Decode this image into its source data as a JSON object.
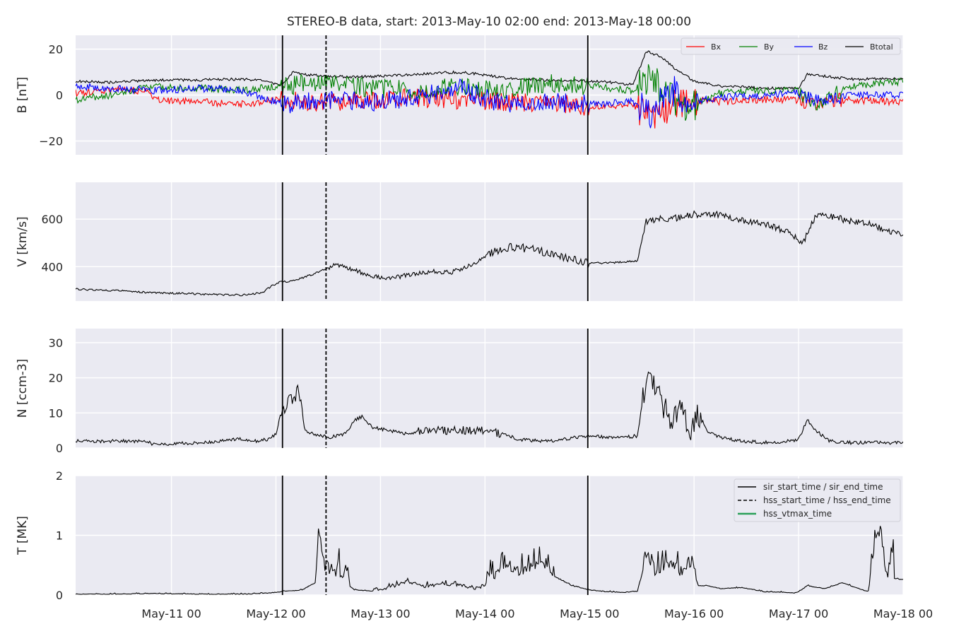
{
  "chart_data": {
    "type": "line",
    "title": "STEREO-B data, start: 2013-May-10 02:00  end: 2013-May-18 00:00",
    "x_range_hours": [
      2,
      192
    ],
    "x_ticks": [
      {
        "h": 24,
        "label": "May-11 00"
      },
      {
        "h": 48,
        "label": "May-12 00"
      },
      {
        "h": 72,
        "label": "May-13 00"
      },
      {
        "h": 96,
        "label": "May-14 00"
      },
      {
        "h": 120,
        "label": "May-15 00"
      },
      {
        "h": 144,
        "label": "May-16 00"
      },
      {
        "h": 168,
        "label": "May-17 00"
      },
      {
        "h": 192,
        "label": "May-18 00"
      }
    ],
    "events": {
      "sir_start_time": 49.5,
      "hss_start_time": 59.5,
      "sir_end_time": 119.6
    },
    "colors": {
      "Bx": "#ff0000",
      "By": "#008000",
      "Bz": "#0000ff",
      "Btotal": "#000000",
      "vtmax": "#2ca05a"
    },
    "panels": [
      {
        "key": "B",
        "ylabel": "B [nT]",
        "ylim": [
          -26,
          26
        ],
        "yticks": [
          -20,
          0,
          20
        ],
        "legend": [
          "Bx",
          "By",
          "Bz",
          "Btotal"
        ],
        "series": [
          {
            "name": "Btotal",
            "x": [
              2,
              10,
              20,
              30,
              40,
              46,
              49,
              52,
              55,
              60,
              70,
              80,
              90,
              95,
              100,
              110,
              120,
              125,
              130,
              133,
              136,
              140,
              144,
              150,
              160,
              168,
              170,
              180,
              192
            ],
            "y": [
              6,
              5.5,
              6.5,
              6.5,
              7,
              6,
              4,
              10,
              9,
              8,
              8,
              9,
              10,
              9,
              7.5,
              6.5,
              6,
              5.5,
              4.5,
              19,
              17,
              11,
              6,
              4,
              3,
              3,
              9,
              7,
              7
            ]
          },
          {
            "name": "Bx",
            "x": [
              2,
              10,
              18,
              20,
              30,
              40,
              50,
              60,
              70,
              80,
              90,
              100,
              110,
              120,
              130,
              134,
              138,
              142,
              150,
              160,
              168,
              172,
              180,
              192
            ],
            "y": [
              1,
              2,
              2,
              -2,
              -3,
              -4,
              -2,
              -3,
              -2,
              -1,
              -2,
              -3,
              -3,
              -5,
              -4,
              -10,
              -6,
              -2,
              -3,
              -2,
              -2,
              -4,
              -2,
              -3
            ]
          },
          {
            "name": "By",
            "x": [
              2,
              10,
              20,
              30,
              40,
              50,
              60,
              70,
              80,
              90,
              100,
              110,
              120,
              130,
              134,
              138,
              142,
              150,
              160,
              168,
              172,
              180,
              192
            ],
            "y": [
              -2,
              0,
              4,
              3,
              2,
              4,
              6,
              3,
              2,
              4,
              2,
              5,
              4,
              2,
              8,
              0,
              -6,
              1,
              2,
              2,
              -4,
              4,
              6
            ]
          },
          {
            "name": "Bz",
            "x": [
              2,
              10,
              20,
              30,
              40,
              50,
              60,
              70,
              80,
              90,
              100,
              110,
              120,
              130,
              134,
              138,
              142,
              150,
              160,
              168,
              172,
              180,
              192
            ],
            "y": [
              4,
              3,
              2,
              3,
              2,
              -4,
              -2,
              -3,
              -1,
              3,
              -4,
              -3,
              -4,
              -3,
              -8,
              4,
              -3,
              -1,
              0,
              1,
              -3,
              0,
              0
            ]
          }
        ]
      },
      {
        "key": "V",
        "ylabel": "V [km/s]",
        "ylim": [
          255,
          755
        ],
        "yticks": [
          400,
          600
        ],
        "series": [
          {
            "name": "V",
            "x": [
              2,
              10,
              20,
              30,
              40,
              45,
              47,
              49,
              52,
              56,
              60,
              62,
              66,
              70,
              74,
              80,
              84,
              88,
              92,
              96,
              100,
              104,
              108,
              112,
              116,
              120,
              124,
              128,
              131,
              133,
              136,
              140,
              144,
              150,
              156,
              162,
              166,
              169,
              172,
              176,
              180,
              184,
              188,
              192
            ],
            "y": [
              305,
              300,
              290,
              285,
              280,
              290,
              320,
              335,
              340,
              365,
              395,
              410,
              385,
              360,
              350,
              370,
              380,
              375,
              400,
              440,
              480,
              480,
              470,
              450,
              430,
              415,
              415,
              420,
              425,
              590,
              600,
              605,
              620,
              620,
              590,
              570,
              540,
              500,
              615,
              610,
              590,
              580,
              555,
              535
            ]
          }
        ]
      },
      {
        "key": "N",
        "ylabel": "N [ccm-3]",
        "ylim": [
          0,
          34
        ],
        "yticks": [
          0,
          10,
          20,
          30
        ],
        "series": [
          {
            "name": "N",
            "x": [
              2,
              10,
              18,
              20,
              30,
              35,
              40,
              44,
              46,
              48,
              49,
              51,
              53,
              55,
              57,
              60,
              64,
              66,
              68,
              70,
              74,
              78,
              82,
              86,
              90,
              96,
              100,
              104,
              108,
              112,
              116,
              120,
              124,
              128,
              131,
              133,
              135,
              137,
              139,
              141,
              143,
              145,
              147,
              150,
              155,
              160,
              166,
              168,
              170,
              172,
              175,
              180,
              185,
              192
            ],
            "y": [
              2,
              2,
              2,
              1,
              1.5,
              2,
              2.5,
              2,
              2.5,
              4,
              9,
              13,
              16,
              5,
              4,
              3,
              4,
              8,
              9,
              6,
              5,
              4,
              5,
              5,
              5,
              5,
              4,
              2.5,
              2,
              2,
              3,
              3.5,
              3,
              3,
              3.5,
              20,
              17,
              12,
              7,
              13,
              5,
              10,
              5,
              3,
              2,
              1.5,
              2,
              2.5,
              8,
              5,
              2,
              1.5,
              1.5,
              1.5
            ]
          }
        ]
      },
      {
        "key": "T",
        "ylabel": "T [MK]",
        "ylim": [
          0,
          2
        ],
        "yticks": [
          0,
          1,
          2
        ],
        "legend": [
          "sir_start_time / sir_end_time",
          "hss_start_time / hss_end_time",
          "hss_vtmax_time"
        ],
        "series": [
          {
            "name": "T",
            "x": [
              2,
              10,
              20,
              30,
              40,
              45,
              48,
              50,
              54,
              57,
              58,
              59,
              60,
              62,
              64,
              66,
              70,
              74,
              78,
              82,
              86,
              90,
              94,
              96,
              100,
              104,
              108,
              112,
              116,
              120,
              124,
              128,
              131,
              133,
              135,
              137,
              139,
              141,
              143,
              145,
              147,
              150,
              155,
              160,
              165,
              167,
              168,
              170,
              174,
              178,
              180,
              182,
              184,
              186,
              188,
              192
            ],
            "y": [
              0.01,
              0.01,
              0.02,
              0.01,
              0.01,
              0.02,
              0.04,
              0.06,
              0.08,
              0.2,
              0.9,
              0.4,
              0.25,
              0.3,
              0.2,
              0.08,
              0.06,
              0.1,
              0.2,
              0.12,
              0.15,
              0.15,
              0.08,
              0.15,
              0.35,
              0.3,
              0.45,
              0.3,
              0.15,
              0.08,
              0.05,
              0.04,
              0.06,
              0.6,
              0.3,
              0.4,
              0.45,
              0.3,
              0.45,
              0.15,
              0.15,
              0.1,
              0.12,
              0.05,
              0.04,
              0.03,
              0.05,
              0.15,
              0.1,
              0.2,
              0.15,
              0.1,
              0.05,
              1.0,
              0.3,
              0.25
            ]
          }
        ]
      }
    ]
  }
}
